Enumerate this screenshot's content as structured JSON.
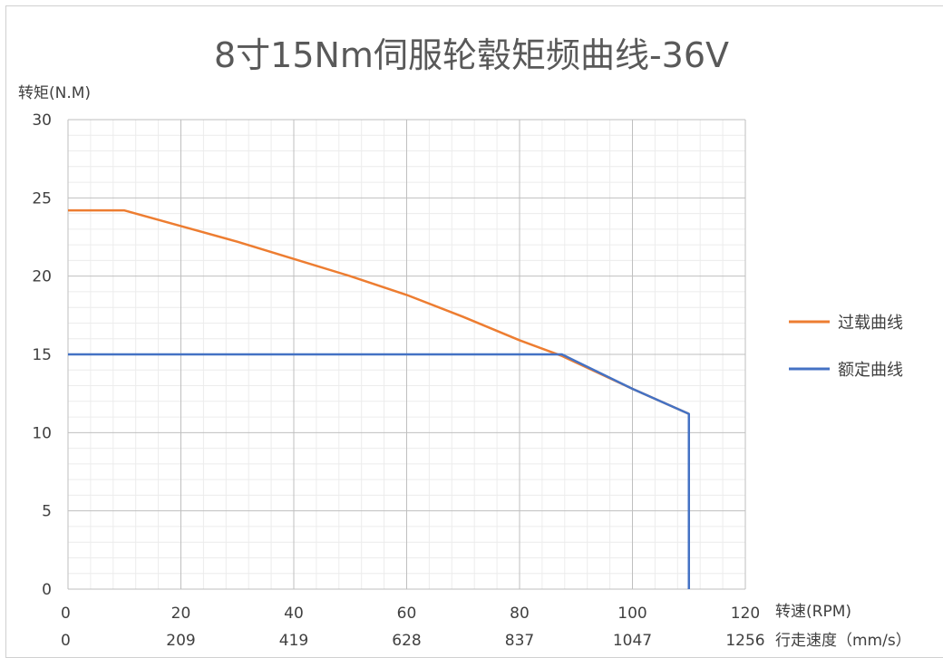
{
  "chart_data": {
    "type": "line",
    "title": "8寸15Nm伺服轮毂矩频曲线-36V",
    "ylabel": "转矩(N.M)",
    "xlabel": "转速(RPM)",
    "xlabel2": "行走速度（mm/s）",
    "xlim": [
      0,
      120
    ],
    "ylim": [
      0,
      30
    ],
    "xticks": [
      0,
      20,
      40,
      60,
      80,
      100,
      120
    ],
    "xticks2": [
      "0",
      "209",
      "419",
      "628",
      "837",
      "1047",
      "1256"
    ],
    "yticks": [
      0,
      5,
      10,
      15,
      20,
      25,
      30
    ],
    "grid": true,
    "legend_position": "right",
    "series": [
      {
        "name": "过载曲线",
        "color": "#ED7D31",
        "x": [
          0,
          10,
          20,
          30,
          40,
          50,
          60,
          70,
          80,
          87.5,
          100,
          110
        ],
        "y": [
          24.2,
          24.2,
          23.2,
          22.2,
          21.1,
          20.0,
          18.8,
          17.4,
          15.9,
          14.9,
          12.8,
          11.2
        ]
      },
      {
        "name": "额定曲线",
        "color": "#4472C4",
        "x": [
          0,
          87.5,
          100,
          110,
          110
        ],
        "y": [
          15,
          15,
          12.8,
          11.2,
          0
        ]
      }
    ]
  }
}
